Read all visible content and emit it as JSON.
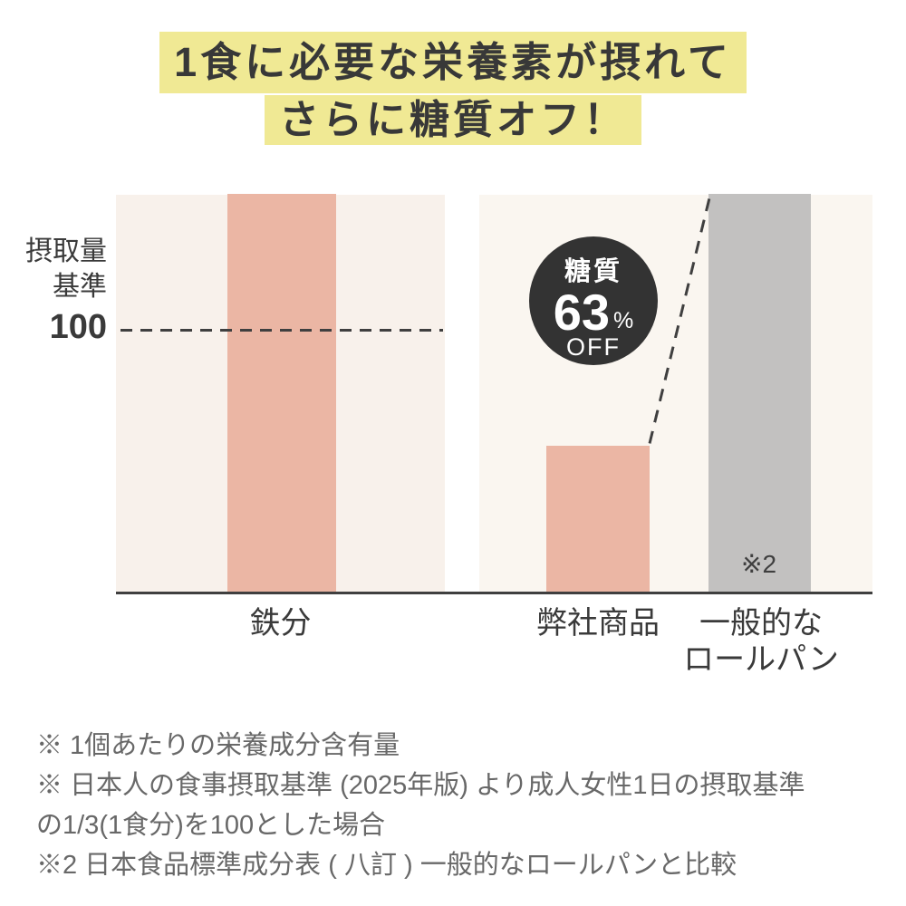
{
  "title": {
    "line1": "1食に必要な栄養素が摂れて",
    "line2": "さらに糖質オフ！"
  },
  "yaxis": {
    "label_line1": "摂取量",
    "label_line2": "基準",
    "value": "100"
  },
  "chart_data": {
    "type": "bar",
    "title": "1食に必要な栄養素が摂れて さらに糖質オフ！",
    "ylabel": "摂取量基準",
    "ylim": [
      0,
      152
    ],
    "reference_line": {
      "value": 100,
      "label": "摂取量基準 100"
    },
    "grid": false,
    "panels": [
      {
        "name": "nutrient-panel",
        "bars": [
          {
            "label": "鉄分",
            "value": 152,
            "clipped_at_top": true,
            "color": "#ebb6a4"
          }
        ]
      },
      {
        "name": "sugar-comparison-panel",
        "bars": [
          {
            "label": "弊社商品",
            "value": 56,
            "clipped_at_top": false,
            "color": "#ebb6a4"
          },
          {
            "label": "一般的なロールパン",
            "value": 152,
            "clipped_at_top": true,
            "color": "#c2c1c0",
            "annotation": "※2"
          }
        ]
      }
    ],
    "badge": {
      "top": "糖質",
      "value": "63",
      "percent": "%",
      "bottom": "OFF"
    }
  },
  "xlabels": {
    "iron": "鉄分",
    "product": "弊社商品",
    "roll_line1": "一般的な",
    "roll_line2": "ロールパン",
    "roll_annotation": "※2"
  },
  "footnotes": [
    "※ 1個あたりの栄養成分含有量",
    "※ 日本人の食事摂取基準 (2025年版) より成人女性1日の摂取基準",
    "の1/3(1食分)を100とした場合",
    "※2 日本食品標準成分表 ( 八訂 ) 一般的なロールパンと比較"
  ],
  "colors": {
    "highlight_yellow": "#f0e994",
    "bar_pink": "#ebb6a4",
    "bar_gray": "#c2c1c0",
    "panel_left_bg": "#f8f1eb",
    "panel_right_bg": "#faf6f0",
    "badge_bg": "#333333",
    "line_dark": "#3f3f3f",
    "title_text": "#383838",
    "footnote_text": "#686868"
  }
}
